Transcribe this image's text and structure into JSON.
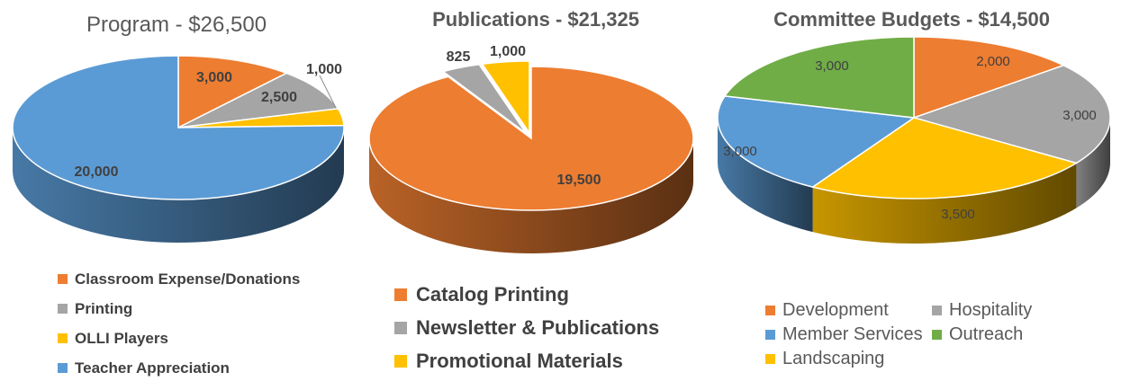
{
  "chart_data": [
    {
      "type": "pie",
      "title": "Program - $26,500",
      "slices": [
        {
          "label": "Classroom Expense/Donations",
          "value": 3000,
          "data_label": "3,000",
          "color": "#ED7D31"
        },
        {
          "label": "Printing",
          "value": 2500,
          "data_label": "2,500",
          "color": "#A5A5A5"
        },
        {
          "label": "OLLI Players",
          "value": 1000,
          "data_label": "1,000",
          "color": "#FFC000"
        },
        {
          "label": "Teacher Appreciation",
          "value": 20000,
          "data_label": "20,000",
          "color": "#5B9BD5"
        }
      ],
      "legend_position": "bottom"
    },
    {
      "type": "pie",
      "title": "Publications - $21,325",
      "slices": [
        {
          "label": "Catalog Printing",
          "value": 19500,
          "data_label": "19,500",
          "color": "#ED7D31"
        },
        {
          "label": "Newsletter & Publications",
          "value": 825,
          "data_label": "825",
          "color": "#A5A5A5"
        },
        {
          "label": "Promotional Materials",
          "value": 1000,
          "data_label": "1,000",
          "color": "#FFC000"
        }
      ],
      "legend_position": "bottom"
    },
    {
      "type": "pie",
      "title": "Committee Budgets - $14,500",
      "slices": [
        {
          "label": "Development",
          "value": 2000,
          "data_label": "2,000",
          "color": "#ED7D31"
        },
        {
          "label": "Hospitality",
          "value": 3000,
          "data_label": "3,000",
          "color": "#A5A5A5"
        },
        {
          "label": "Landscaping",
          "value": 3500,
          "data_label": "3,500",
          "color": "#FFC000"
        },
        {
          "label": "Member Services",
          "value": 3000,
          "data_label": "3,000",
          "color": "#5B9BD5"
        },
        {
          "label": "Outreach",
          "value": 3000,
          "data_label": "3,000",
          "color": "#70AD47"
        }
      ],
      "legend_position": "bottom"
    }
  ]
}
